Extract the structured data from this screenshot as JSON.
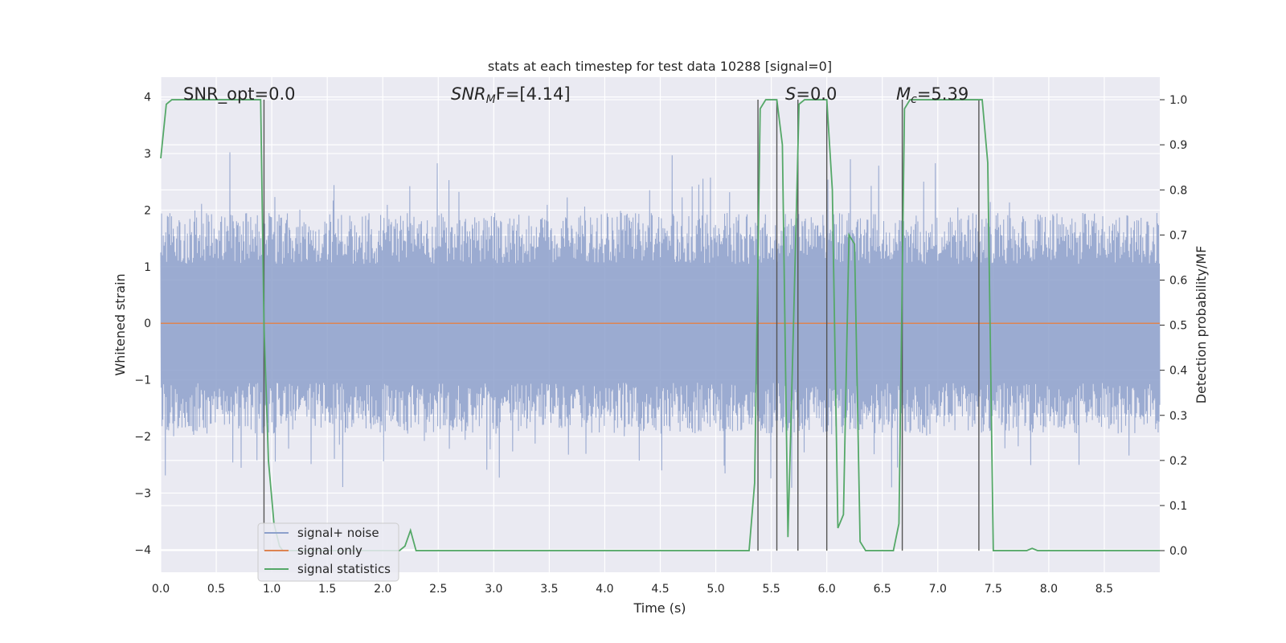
{
  "chart_data": {
    "type": "line",
    "title": "stats at each timestep for test data 10288 [signal=0]",
    "xlabel": "Time (s)",
    "ylabel": "Whitened strain",
    "y2label": "Detection probability/MF",
    "xlim": [
      0.0,
      9.0
    ],
    "ylim": [
      -4.4,
      4.35
    ],
    "y2lim": [
      -0.048,
      1.05
    ],
    "xticks": [
      "0.0",
      "0.5",
      "1.0",
      "1.5",
      "2.0",
      "2.5",
      "3.0",
      "3.5",
      "4.0",
      "4.5",
      "5.0",
      "5.5",
      "6.0",
      "6.5",
      "7.0",
      "7.5",
      "8.0",
      "8.5"
    ],
    "yticks": [
      "4",
      "3",
      "2",
      "1",
      "0",
      "−1",
      "−2",
      "−3",
      "−4"
    ],
    "y2ticks": [
      "1.0",
      "0.9",
      "0.8",
      "0.7",
      "0.6",
      "0.5",
      "0.4",
      "0.3",
      "0.2",
      "0.1",
      "0.0"
    ],
    "grid": true,
    "legend_position": "lower-left",
    "annotations": {
      "snr_opt": "SNR_opt=0.0",
      "snr_mf_main": "SNR",
      "snr_mf_sub": "M",
      "snr_mf_rest": "F=[4.14]",
      "s_main": "S",
      "s_rest": "=0.0",
      "mc_main": "M",
      "mc_sub": "c",
      "mc_rest": "=5.39"
    },
    "series": [
      {
        "name": "signal+ noise",
        "color": "#8da0cb",
        "kind": "noise",
        "amplitude_envelope": {
          "typical": 1.5,
          "peak_max": 3.6,
          "peak_min": -4.0
        }
      },
      {
        "name": "signal only",
        "color": "#dd8452",
        "x": [
          0.0,
          9.0
        ],
        "y": [
          0.0,
          0.0
        ]
      },
      {
        "name": "signal statistics",
        "color": "#55a868",
        "axis": "right",
        "x": [
          0.0,
          0.05,
          0.1,
          0.15,
          0.9,
          0.93,
          0.97,
          1.02,
          1.07,
          1.1,
          2.15,
          2.2,
          2.25,
          2.3,
          5.3,
          5.35,
          5.4,
          5.45,
          5.5,
          5.55,
          5.6,
          5.65,
          5.7,
          5.75,
          5.8,
          5.85,
          6.0,
          6.05,
          6.1,
          6.15,
          6.2,
          6.25,
          6.3,
          6.35,
          6.4,
          6.45,
          6.6,
          6.65,
          6.7,
          6.75,
          6.8,
          7.35,
          7.4,
          7.45,
          7.5,
          7.55,
          7.8,
          7.85,
          7.9,
          9.0
        ],
        "y": [
          0.87,
          0.99,
          1.0,
          1.0,
          1.0,
          0.5,
          0.2,
          0.06,
          0.01,
          0.0,
          0.0,
          0.01,
          0.045,
          0.0,
          0.0,
          0.15,
          0.98,
          1.0,
          1.0,
          1.0,
          0.9,
          0.03,
          0.5,
          0.99,
          1.0,
          1.0,
          1.0,
          0.8,
          0.05,
          0.08,
          0.7,
          0.68,
          0.02,
          0.0,
          0.0,
          0.0,
          0.0,
          0.06,
          0.98,
          1.0,
          1.0,
          1.0,
          1.0,
          0.86,
          0.0,
          0.0,
          0.0,
          0.005,
          0.0,
          0.0
        ]
      }
    ],
    "vertical_lines_x": [
      0.93,
      5.38,
      5.55,
      5.74,
      6.0,
      6.68,
      7.37
    ]
  }
}
